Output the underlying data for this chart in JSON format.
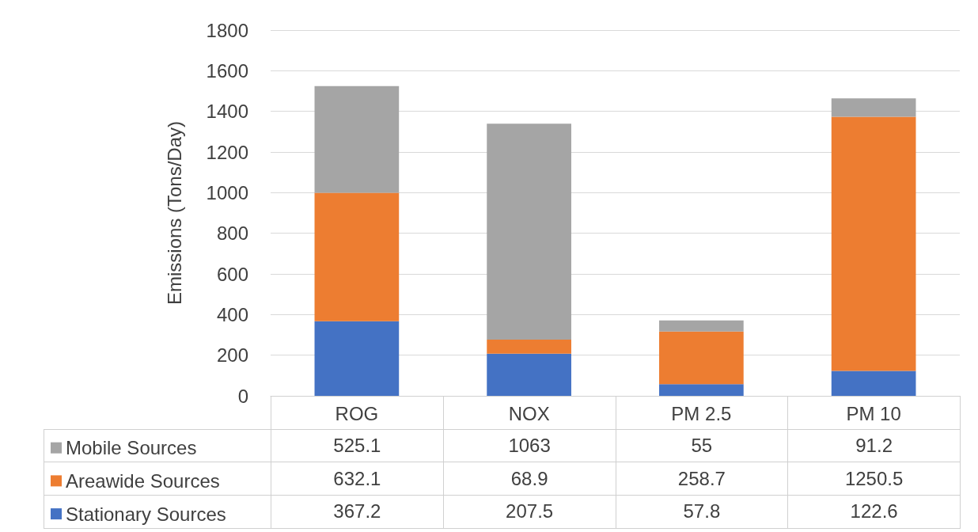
{
  "chart_data": {
    "type": "bar",
    "stacked": true,
    "ylabel": "Emissions (Tons/Day)",
    "categories": [
      "ROG",
      "NOX",
      "PM 2.5",
      "PM 10"
    ],
    "series": [
      {
        "name": "Stationary Sources",
        "color": "#4472c4",
        "values": [
          367.2,
          207.5,
          57.8,
          122.6
        ]
      },
      {
        "name": "Areawide Sources",
        "color": "#ed7d31",
        "values": [
          632.1,
          68.9,
          258.7,
          1250.5
        ]
      },
      {
        "name": "Mobile Sources",
        "color": "#a5a5a5",
        "values": [
          525.1,
          1063,
          55,
          91.2
        ]
      }
    ],
    "ylim": [
      0,
      1800
    ],
    "yticks": [
      0,
      200,
      400,
      600,
      800,
      1000,
      1200,
      1400,
      1600,
      1800
    ],
    "grid": "y",
    "legend": "bottom",
    "data_labels": true
  }
}
